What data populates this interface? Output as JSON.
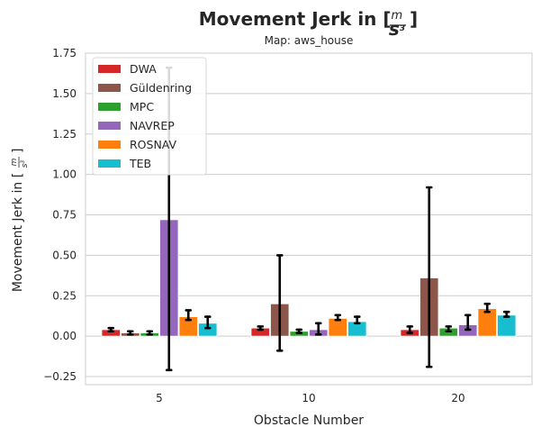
{
  "chart_data": {
    "type": "bar",
    "title": "Movement Jerk in [",
    "title_unit_num": "m",
    "title_unit_den": "s",
    "title_unit_exp": "3",
    "title_suffix": "]",
    "subtitle": "Map: aws_house",
    "xlabel": "Obstacle Number",
    "ylabel": "Movement Jerk in [",
    "ylabel_unit_num": "m",
    "ylabel_unit_den": "s",
    "ylabel_unit_exp": "3",
    "ylabel_suffix": "]",
    "categories": [
      "5",
      "10",
      "20"
    ],
    "ylim": [
      -0.3,
      1.75
    ],
    "yticks": [
      "−0.25",
      "0.00",
      "0.25",
      "0.50",
      "0.75",
      "1.00",
      "1.25",
      "1.50",
      "1.75"
    ],
    "ytick_values": [
      -0.25,
      0.0,
      0.25,
      0.5,
      0.75,
      1.0,
      1.25,
      1.5,
      1.75
    ],
    "grid": true,
    "legend_position": "top-left",
    "series": [
      {
        "name": "DWA",
        "color": "#d62728",
        "values": [
          0.04,
          0.05,
          0.04
        ],
        "err_low": [
          0.03,
          0.04,
          0.02
        ],
        "err_high": [
          0.05,
          0.06,
          0.06
        ]
      },
      {
        "name": "Güldenring",
        "color": "#8c564b",
        "values": [
          0.02,
          0.2,
          0.36
        ],
        "err_low": [
          0.01,
          -0.09,
          -0.19
        ],
        "err_high": [
          0.03,
          0.5,
          0.92
        ]
      },
      {
        "name": "MPC",
        "color": "#2ca02c",
        "values": [
          0.02,
          0.03,
          0.05
        ],
        "err_low": [
          0.01,
          0.02,
          0.03
        ],
        "err_high": [
          0.03,
          0.04,
          0.06
        ]
      },
      {
        "name": "NAVREP",
        "color": "#9467bd",
        "values": [
          0.72,
          0.04,
          0.07
        ],
        "err_low": [
          -0.21,
          0.01,
          0.04
        ],
        "err_high": [
          1.66,
          0.08,
          0.13
        ]
      },
      {
        "name": "ROSNAV",
        "color": "#ff7f0e",
        "values": [
          0.12,
          0.11,
          0.17
        ],
        "err_low": [
          0.1,
          0.1,
          0.15
        ],
        "err_high": [
          0.16,
          0.13,
          0.2
        ]
      },
      {
        "name": "TEB",
        "color": "#17becf",
        "values": [
          0.08,
          0.09,
          0.13
        ],
        "err_low": [
          0.05,
          0.08,
          0.12
        ],
        "err_high": [
          0.12,
          0.12,
          0.15
        ]
      }
    ]
  }
}
